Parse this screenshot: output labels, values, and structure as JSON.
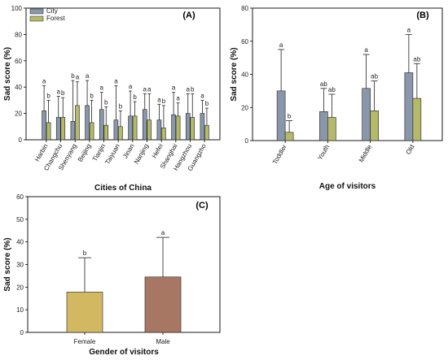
{
  "chart_data": [
    {
      "panel": "(A)",
      "type": "bar",
      "ylabel": "Sad score (%)",
      "xlabel": "Cities of China",
      "ylim": [
        0,
        100
      ],
      "yticks": [
        0,
        20,
        40,
        60,
        80,
        100
      ],
      "legend": "top-left",
      "categories": [
        "Harbin",
        "Changchu",
        "Shenyang",
        "Beijing",
        "Tianjin",
        "Taiyuan",
        "Jinan",
        "Nanjing",
        "Hefei",
        "Shanghai",
        "Hangzhou",
        "Guangzho"
      ],
      "series": [
        {
          "name": "City",
          "color": "#8a97ab",
          "values": [
            22,
            17,
            14,
            26,
            23,
            15,
            18,
            23,
            15,
            19,
            20,
            20
          ],
          "errors": [
            19,
            16,
            31,
            19,
            13,
            26,
            19,
            12,
            12,
            17,
            15,
            10
          ],
          "letters": [
            "a",
            "a",
            "b",
            "a",
            "a",
            "a",
            "a",
            "a",
            "a",
            "a",
            "a",
            "a"
          ]
        },
        {
          "name": "Forest",
          "color": "#b5b96a",
          "values": [
            13,
            17,
            26,
            13,
            11,
            10,
            18,
            15,
            9,
            18,
            17,
            11
          ],
          "errors": [
            17,
            15,
            18,
            17,
            14,
            12,
            11,
            20,
            17,
            10,
            18,
            13
          ],
          "letters": [
            "b",
            "b",
            "a",
            "b",
            "b",
            "b",
            "b",
            "a",
            "b",
            "a",
            "b",
            "b"
          ]
        }
      ]
    },
    {
      "panel": "(B)",
      "type": "bar",
      "ylabel": "Sad score (%)",
      "xlabel": "Age of visitors",
      "ylim": [
        0,
        80
      ],
      "yticks": [
        0,
        20,
        40,
        60,
        80
      ],
      "categories": [
        "Toddler",
        "Youth",
        "Middle",
        "Old"
      ],
      "series": [
        {
          "name": "City",
          "color": "#8a97ab",
          "values": [
            30,
            17.5,
            31.5,
            41
          ],
          "errors": [
            25,
            14,
            20.5,
            23
          ],
          "letters": [
            "a",
            "ab",
            "a",
            "a"
          ]
        },
        {
          "name": "Forest",
          "color": "#b5b96a",
          "values": [
            5,
            14,
            18,
            25.5
          ],
          "errors": [
            7,
            14,
            18,
            21
          ],
          "letters": [
            "b",
            "ab",
            "ab",
            "ab"
          ]
        }
      ]
    },
    {
      "panel": "(C)",
      "type": "bar",
      "ylabel": "Sad score (%)",
      "xlabel": "Gender of visitors",
      "ylim": [
        0,
        60
      ],
      "yticks": [
        0,
        10,
        20,
        30,
        40,
        50,
        60
      ],
      "categories": [
        "Female",
        "Male"
      ],
      "values": [
        17.8,
        24.5
      ],
      "errors": [
        15.2,
        17.5
      ],
      "colors": [
        "#d3b862",
        "#a87763"
      ],
      "letters": [
        "b",
        "a"
      ]
    }
  ]
}
